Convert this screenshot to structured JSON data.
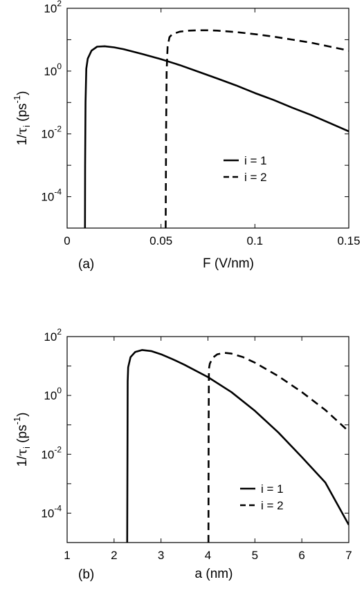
{
  "chart_data": [
    {
      "type": "line",
      "panel_label": "(a)",
      "xlabel": "F (V/nm)",
      "ylabel": {
        "pre": "1/",
        "sym": "τ",
        "sub": "i",
        "mid": " (ps",
        "sup": "-1",
        "post": ")"
      },
      "xlim": [
        0,
        0.15
      ],
      "ylim": [
        1e-05,
        100
      ],
      "yscale": "log",
      "xticks": [
        0,
        0.05,
        0.1,
        0.15
      ],
      "xtick_labels": [
        "0",
        "0.05",
        "0.1",
        "0.15"
      ],
      "yticks": [
        100,
        1,
        0.01,
        0.0001
      ],
      "ytick_labels": [
        {
          "base": "10",
          "exp": "2"
        },
        {
          "base": "10",
          "exp": "0"
        },
        {
          "base": "10",
          "exp": "-2"
        },
        {
          "base": "10",
          "exp": "-4"
        }
      ],
      "legend_position": "center-right",
      "series": [
        {
          "name": "i = 1",
          "style": "solid",
          "x": [
            0.0095,
            0.0096,
            0.0098,
            0.0102,
            0.011,
            0.013,
            0.016,
            0.02,
            0.025,
            0.03,
            0.04,
            0.05,
            0.06,
            0.07,
            0.08,
            0.09,
            0.1,
            0.11,
            0.12,
            0.13,
            0.14,
            0.15
          ],
          "y": [
            1e-05,
            0.001,
            0.1,
            1.2,
            2.5,
            4.5,
            6.0,
            6.2,
            5.7,
            5.0,
            3.5,
            2.4,
            1.55,
            0.95,
            0.58,
            0.35,
            0.2,
            0.12,
            0.068,
            0.04,
            0.022,
            0.012
          ]
        },
        {
          "name": "i = 2",
          "style": "dashed",
          "x": [
            0.0525,
            0.0527,
            0.053,
            0.0535,
            0.0545,
            0.056,
            0.06,
            0.065,
            0.07,
            0.075,
            0.08,
            0.09,
            0.1,
            0.11,
            0.12,
            0.13,
            0.14,
            0.15
          ],
          "y": [
            1e-05,
            0.01,
            1.0,
            6.0,
            12.0,
            15.0,
            18.0,
            19.5,
            20.0,
            20.0,
            19.5,
            17.5,
            15.0,
            12.5,
            10.0,
            8.0,
            6.0,
            4.5
          ]
        }
      ]
    },
    {
      "type": "line",
      "panel_label": "(b)",
      "xlabel": "a (nm)",
      "ylabel": {
        "pre": "1/",
        "sym": "τ",
        "sub": "i",
        "mid": " (ps",
        "sup": "-1",
        "post": ")"
      },
      "xlim": [
        1,
        7
      ],
      "ylim": [
        1e-05,
        100
      ],
      "yscale": "log",
      "xticks": [
        1,
        2,
        3,
        4,
        5,
        6,
        7
      ],
      "xtick_labels": [
        "1",
        "2",
        "3",
        "4",
        "5",
        "6",
        "7"
      ],
      "yticks": [
        100,
        1,
        0.01,
        0.0001
      ],
      "ytick_labels": [
        {
          "base": "10",
          "exp": "2"
        },
        {
          "base": "10",
          "exp": "0"
        },
        {
          "base": "10",
          "exp": "-2"
        },
        {
          "base": "10",
          "exp": "-4"
        }
      ],
      "legend_position": "lower-right",
      "series": [
        {
          "name": "i = 1",
          "style": "solid",
          "x": [
            2.28,
            2.285,
            2.29,
            2.3,
            2.35,
            2.45,
            2.6,
            2.8,
            3.0,
            3.25,
            3.5,
            4.0,
            4.5,
            5.0,
            5.5,
            6.0,
            6.5,
            7.0
          ],
          "y": [
            1e-05,
            0.01,
            3.0,
            9.0,
            20.0,
            30.0,
            35.0,
            32.0,
            25.0,
            17.0,
            11.0,
            4.2,
            1.3,
            0.3,
            0.055,
            0.008,
            0.0011,
            4e-05
          ]
        },
        {
          "name": "i = 2",
          "style": "dashed",
          "x": [
            4.01,
            4.015,
            4.02,
            4.04,
            4.1,
            4.2,
            4.35,
            4.5,
            4.75,
            5.0,
            5.5,
            6.0,
            6.5,
            7.0
          ],
          "y": [
            1e-05,
            0.1,
            8.0,
            12.0,
            19.0,
            25.0,
            28.0,
            26.5,
            20.0,
            13.0,
            4.5,
            1.3,
            0.32,
            0.06
          ]
        }
      ]
    }
  ]
}
